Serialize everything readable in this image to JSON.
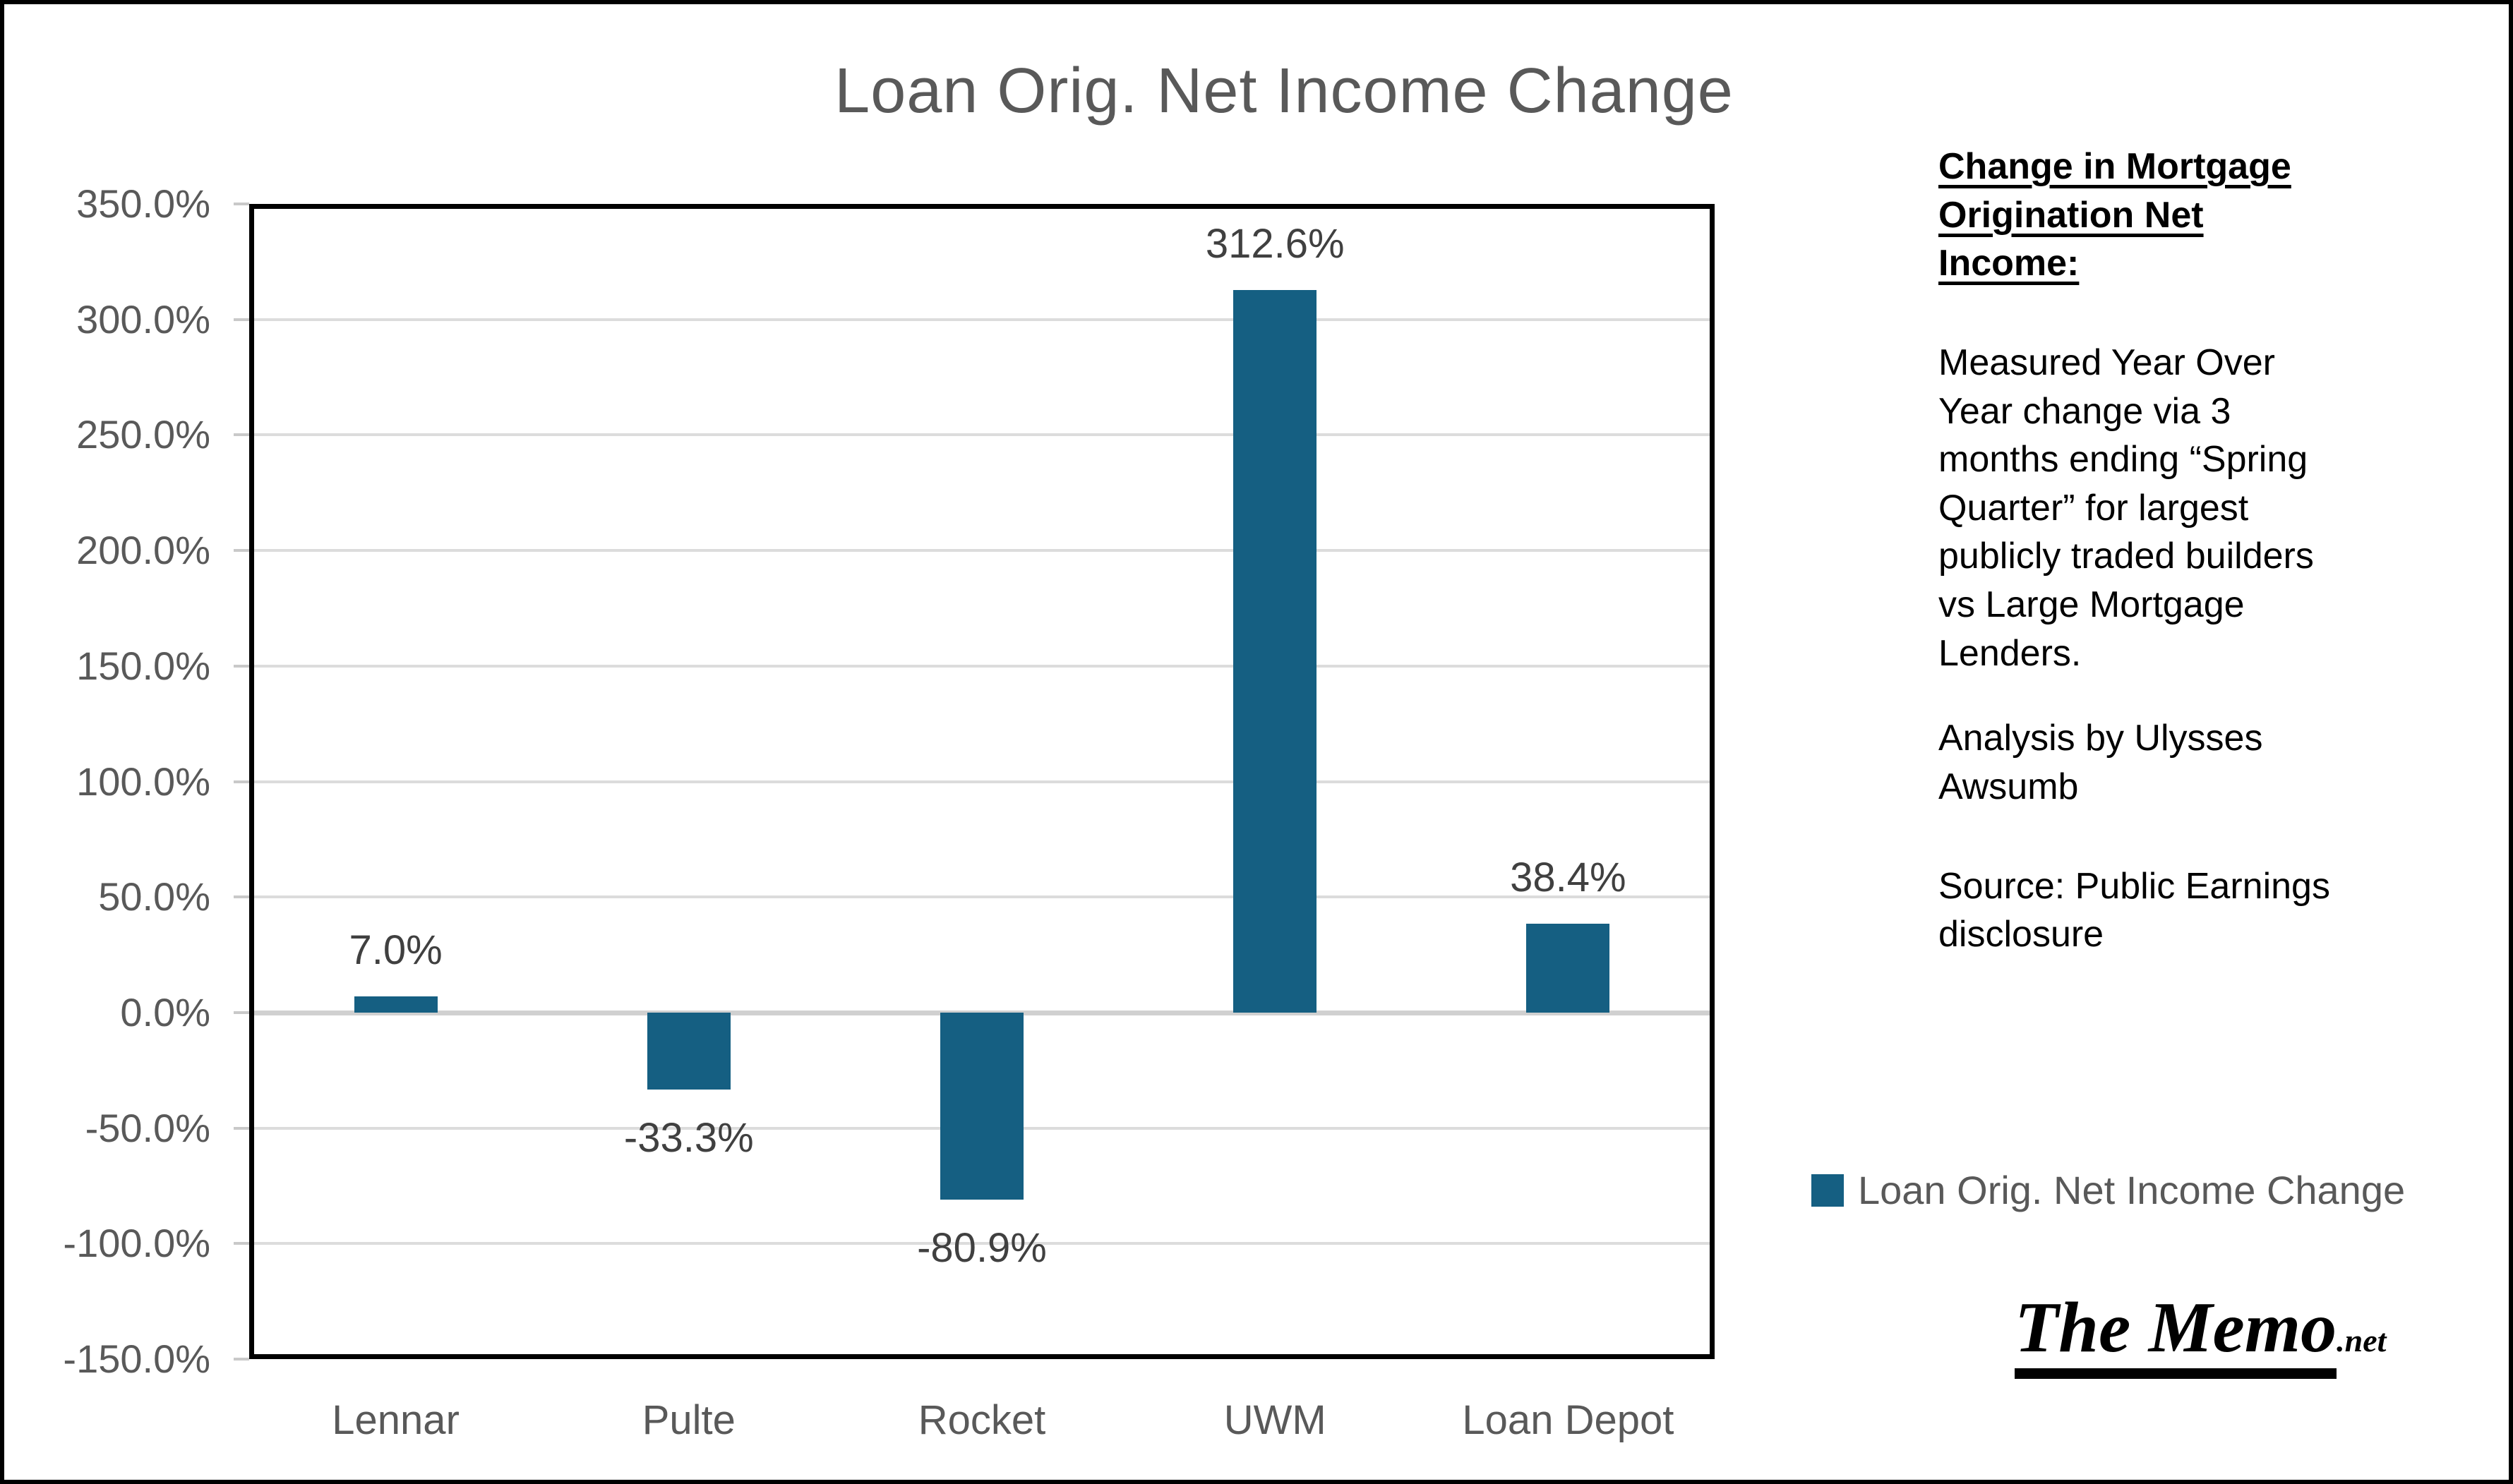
{
  "chart_data": {
    "type": "bar",
    "title": "Loan Orig. Net Income Change",
    "categories": [
      "Lennar",
      "Pulte",
      "Rocket",
      "UWM",
      "Loan Depot"
    ],
    "values": [
      7.0,
      -33.3,
      -80.9,
      312.6,
      38.4
    ],
    "value_labels": [
      "7.0%",
      "-33.3%",
      "-80.9%",
      "312.6%",
      "38.4%"
    ],
    "y_ticks": [
      "350.0%",
      "300.0%",
      "250.0%",
      "200.0%",
      "150.0%",
      "100.0%",
      "50.0%",
      "0.0%",
      "-50.0%",
      "-100.0%",
      "-150.0%"
    ],
    "y_tick_values": [
      350,
      300,
      250,
      200,
      150,
      100,
      50,
      0,
      -50,
      -100,
      -150
    ],
    "ylim": [
      -150,
      350
    ],
    "grid": true,
    "bar_color": "#155f82",
    "legend": {
      "label": "Loan Orig. Net Income Change",
      "position": "bottom-right"
    }
  },
  "side_panel": {
    "heading": "Change in Mortgage Origination Net Income:",
    "paragraph1": "Measured Year Over Year change via 3 months ending “Spring Quarter” for largest publicly traded builders vs Large Mortgage Lenders.",
    "paragraph2": "Analysis by Ulysses Awsumb",
    "paragraph3": "Source: Public Earnings disclosure"
  },
  "branding": {
    "name": "The Memo",
    "suffix": ".net"
  }
}
